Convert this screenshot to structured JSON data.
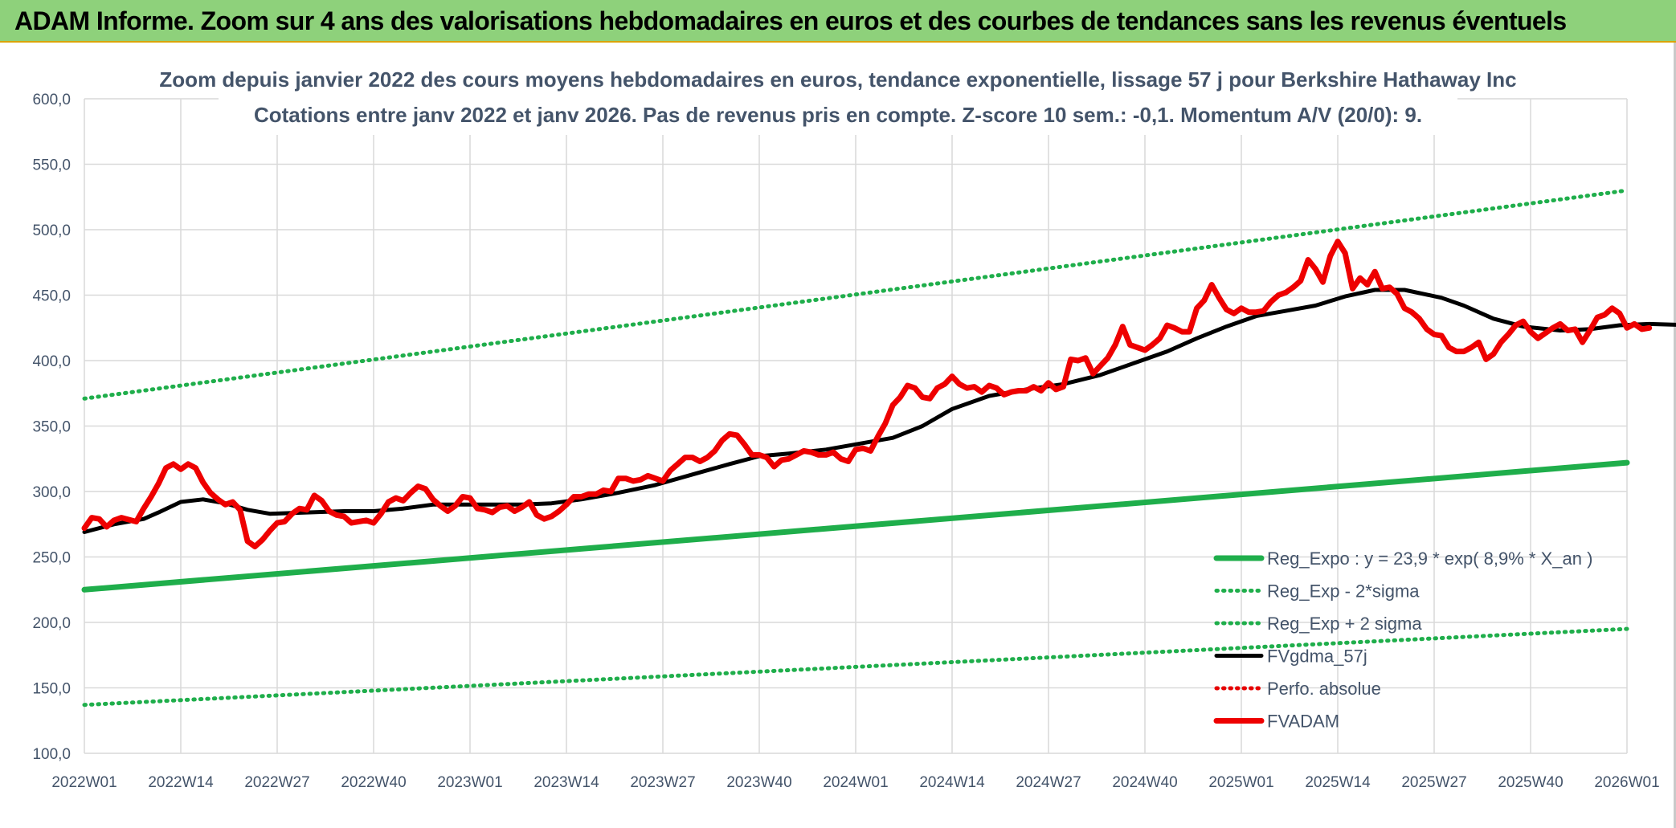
{
  "header": {
    "title": "ADAM Informe. Zoom sur 4 ans des valorisations hebdomadaires en euros et des courbes de tendances sans les revenus éventuels"
  },
  "colors": {
    "banner": "#8ed17b",
    "reg_expo": "#1fae4b",
    "sigma_bands": "#1fae4b",
    "fvgdma": "#000000",
    "perfo": "#e60000",
    "fvadam": "#ee0000",
    "grid": "#d9d9d9",
    "text": "#44546a"
  },
  "chart_data": {
    "type": "line",
    "title": "Zoom depuis janvier 2022 des cours moyens hebdomadaires en euros, tendance exponentielle, lissage 57 j pour Berkshire Hathaway Inc",
    "subtitle": "Cotations entre janv 2022 et janv 2026. Pas de revenus pris en compte. Z-score 10 sem.: -0,1. Momentum A/V (20/0): 9.",
    "xlabel": "",
    "ylabel": "",
    "ylim": [
      100,
      600
    ],
    "yticks": [
      "100,0",
      "150,0",
      "200,0",
      "250,0",
      "300,0",
      "350,0",
      "400,0",
      "450,0",
      "500,0",
      "550,0",
      "600,0"
    ],
    "xlim": [
      0,
      208
    ],
    "x_ticks": [
      "2022W01",
      "2022W14",
      "2022W27",
      "2022W40",
      "2023W01",
      "2023W14",
      "2023W27",
      "2023W40",
      "2024W01",
      "2024W14",
      "2024W27",
      "2024W40",
      "2025W01",
      "2025W14",
      "2025W27",
      "2025W40",
      "2026W01"
    ],
    "grid": true,
    "legend_position": "bottom-right",
    "series": [
      {
        "name": "Reg_Expo : y = 23,9 * exp( 8,9% *  X_an )",
        "style": "solid-thick",
        "color": "#1fae4b",
        "points": [
          [
            0,
            225
          ],
          [
            208,
            322
          ]
        ]
      },
      {
        "name": "Reg_Exp - 2*sigma",
        "style": "dotted",
        "color": "#1fae4b",
        "points": [
          [
            0,
            137
          ],
          [
            208,
            195
          ]
        ]
      },
      {
        "name": "Reg_Exp + 2 sigma",
        "style": "dotted",
        "color": "#1fae4b",
        "points": [
          [
            0,
            371
          ],
          [
            208,
            530
          ]
        ]
      },
      {
        "name": "FVgdma_57j",
        "style": "solid",
        "color": "#000000",
        "points": [
          [
            0,
            269
          ],
          [
            4,
            275
          ],
          [
            8,
            279
          ],
          [
            10,
            284
          ],
          [
            13,
            292
          ],
          [
            16,
            294
          ],
          [
            19,
            291
          ],
          [
            22,
            286
          ],
          [
            25,
            283
          ],
          [
            30,
            284
          ],
          [
            35,
            285
          ],
          [
            39,
            285
          ],
          [
            43,
            287
          ],
          [
            47,
            290
          ],
          [
            51,
            290
          ],
          [
            55,
            290
          ],
          [
            59,
            290
          ],
          [
            63,
            291
          ],
          [
            67,
            294
          ],
          [
            72,
            299
          ],
          [
            77,
            305
          ],
          [
            82,
            313
          ],
          [
            87,
            321
          ],
          [
            91,
            327
          ],
          [
            95,
            329
          ],
          [
            100,
            332
          ],
          [
            104,
            336
          ],
          [
            109,
            341
          ],
          [
            113,
            350
          ],
          [
            117,
            363
          ],
          [
            122,
            373
          ],
          [
            127,
            378
          ],
          [
            132,
            382
          ],
          [
            137,
            389
          ],
          [
            141,
            397
          ],
          [
            146,
            407
          ],
          [
            150,
            417
          ],
          [
            154,
            426
          ],
          [
            158,
            434
          ],
          [
            162,
            438
          ],
          [
            166,
            442
          ],
          [
            170,
            449
          ],
          [
            174,
            454
          ],
          [
            178,
            454
          ],
          [
            183,
            448
          ],
          [
            186,
            442
          ],
          [
            190,
            432
          ],
          [
            194,
            426
          ],
          [
            199,
            423
          ],
          [
            203,
            424
          ],
          [
            207,
            427
          ],
          [
            211,
            428
          ],
          [
            217,
            427
          ]
        ]
      },
      {
        "name": "Perfo. absolue",
        "style": "dotted",
        "color": "#e60000",
        "points": []
      },
      {
        "name": "FVADAM",
        "style": "solid-thick",
        "color": "#ee0000",
        "points": [
          [
            0,
            272
          ],
          [
            1,
            280
          ],
          [
            2,
            279
          ],
          [
            3,
            273
          ],
          [
            4,
            278
          ],
          [
            5,
            280
          ],
          [
            7,
            277
          ],
          [
            8,
            287
          ],
          [
            9,
            296
          ],
          [
            10,
            306
          ],
          [
            11,
            318
          ],
          [
            12,
            321
          ],
          [
            13,
            317
          ],
          [
            14,
            321
          ],
          [
            15,
            318
          ],
          [
            16,
            307
          ],
          [
            17,
            299
          ],
          [
            18,
            294
          ],
          [
            19,
            290
          ],
          [
            20,
            292
          ],
          [
            21,
            286
          ],
          [
            22,
            262
          ],
          [
            23,
            258
          ],
          [
            24,
            263
          ],
          [
            25,
            270
          ],
          [
            26,
            276
          ],
          [
            27,
            277
          ],
          [
            28,
            283
          ],
          [
            29,
            287
          ],
          [
            30,
            286
          ],
          [
            31,
            297
          ],
          [
            32,
            293
          ],
          [
            33,
            285
          ],
          [
            34,
            282
          ],
          [
            35,
            281
          ],
          [
            36,
            276
          ],
          [
            37,
            277
          ],
          [
            38,
            278
          ],
          [
            39,
            276
          ],
          [
            40,
            283
          ],
          [
            41,
            292
          ],
          [
            42,
            295
          ],
          [
            43,
            293
          ],
          [
            44,
            299
          ],
          [
            45,
            304
          ],
          [
            46,
            302
          ],
          [
            47,
            294
          ],
          [
            48,
            289
          ],
          [
            49,
            285
          ],
          [
            50,
            289
          ],
          [
            51,
            296
          ],
          [
            52,
            295
          ],
          [
            53,
            287
          ],
          [
            54,
            286
          ],
          [
            55,
            284
          ],
          [
            56,
            288
          ],
          [
            57,
            289
          ],
          [
            58,
            285
          ],
          [
            59,
            288
          ],
          [
            60,
            292
          ],
          [
            61,
            282
          ],
          [
            62,
            279
          ],
          [
            63,
            281
          ],
          [
            64,
            285
          ],
          [
            65,
            290
          ],
          [
            66,
            296
          ],
          [
            67,
            296
          ],
          [
            68,
            298
          ],
          [
            69,
            298
          ],
          [
            70,
            301
          ],
          [
            71,
            300
          ],
          [
            72,
            310
          ],
          [
            73,
            310
          ],
          [
            74,
            308
          ],
          [
            75,
            309
          ],
          [
            76,
            312
          ],
          [
            77,
            310
          ],
          [
            78,
            308
          ],
          [
            79,
            316
          ],
          [
            80,
            321
          ],
          [
            81,
            326
          ],
          [
            82,
            326
          ],
          [
            83,
            323
          ],
          [
            84,
            326
          ],
          [
            85,
            331
          ],
          [
            86,
            339
          ],
          [
            87,
            344
          ],
          [
            88,
            343
          ],
          [
            89,
            336
          ],
          [
            90,
            328
          ],
          [
            91,
            328
          ],
          [
            92,
            326
          ],
          [
            93,
            319
          ],
          [
            94,
            324
          ],
          [
            95,
            325
          ],
          [
            96,
            328
          ],
          [
            97,
            331
          ],
          [
            98,
            330
          ],
          [
            99,
            328
          ],
          [
            100,
            328
          ],
          [
            101,
            330
          ],
          [
            102,
            325
          ],
          [
            103,
            323
          ],
          [
            104,
            332
          ],
          [
            105,
            333
          ],
          [
            106,
            331
          ],
          [
            107,
            342
          ],
          [
            108,
            352
          ],
          [
            109,
            366
          ],
          [
            110,
            372
          ],
          [
            111,
            381
          ],
          [
            112,
            379
          ],
          [
            113,
            372
          ],
          [
            114,
            371
          ],
          [
            115,
            379
          ],
          [
            116,
            382
          ],
          [
            117,
            388
          ],
          [
            118,
            382
          ],
          [
            119,
            379
          ],
          [
            120,
            380
          ],
          [
            121,
            376
          ],
          [
            122,
            381
          ],
          [
            123,
            379
          ],
          [
            124,
            374
          ],
          [
            125,
            376
          ],
          [
            126,
            377
          ],
          [
            127,
            377
          ],
          [
            128,
            380
          ],
          [
            129,
            377
          ],
          [
            130,
            383
          ],
          [
            131,
            378
          ],
          [
            132,
            380
          ],
          [
            133,
            401
          ],
          [
            134,
            400
          ],
          [
            135,
            402
          ],
          [
            136,
            390
          ],
          [
            137,
            396
          ],
          [
            138,
            402
          ],
          [
            139,
            412
          ],
          [
            140,
            426
          ],
          [
            141,
            412
          ],
          [
            142,
            410
          ],
          [
            143,
            408
          ],
          [
            144,
            412
          ],
          [
            145,
            417
          ],
          [
            146,
            427
          ],
          [
            147,
            425
          ],
          [
            148,
            422
          ],
          [
            149,
            422
          ],
          [
            150,
            440
          ],
          [
            151,
            446
          ],
          [
            152,
            458
          ],
          [
            153,
            448
          ],
          [
            154,
            439
          ],
          [
            155,
            436
          ],
          [
            156,
            440
          ],
          [
            157,
            437
          ],
          [
            158,
            437
          ],
          [
            159,
            438
          ],
          [
            160,
            445
          ],
          [
            161,
            450
          ],
          [
            162,
            452
          ],
          [
            163,
            456
          ],
          [
            164,
            461
          ],
          [
            165,
            477
          ],
          [
            166,
            470
          ],
          [
            167,
            460
          ],
          [
            168,
            480
          ],
          [
            169,
            491
          ],
          [
            170,
            482
          ],
          [
            171,
            455
          ],
          [
            172,
            463
          ],
          [
            173,
            458
          ],
          [
            174,
            468
          ],
          [
            175,
            455
          ],
          [
            176,
            456
          ],
          [
            177,
            451
          ],
          [
            178,
            440
          ],
          [
            179,
            437
          ],
          [
            180,
            432
          ],
          [
            181,
            424
          ],
          [
            182,
            420
          ],
          [
            183,
            419
          ],
          [
            184,
            410
          ],
          [
            185,
            407
          ],
          [
            186,
            407
          ],
          [
            187,
            410
          ],
          [
            188,
            414
          ],
          [
            189,
            401
          ],
          [
            190,
            405
          ],
          [
            191,
            414
          ],
          [
            192,
            420
          ],
          [
            193,
            427
          ],
          [
            194,
            430
          ],
          [
            195,
            422
          ],
          [
            196,
            417
          ],
          [
            197,
            421
          ],
          [
            198,
            425
          ],
          [
            199,
            428
          ],
          [
            200,
            423
          ],
          [
            201,
            424
          ],
          [
            202,
            414
          ],
          [
            203,
            423
          ],
          [
            204,
            433
          ],
          [
            205,
            435
          ],
          [
            206,
            440
          ],
          [
            207,
            436
          ],
          [
            208,
            425
          ],
          [
            209,
            428
          ],
          [
            210,
            424
          ],
          [
            211,
            425
          ]
        ]
      }
    ]
  }
}
